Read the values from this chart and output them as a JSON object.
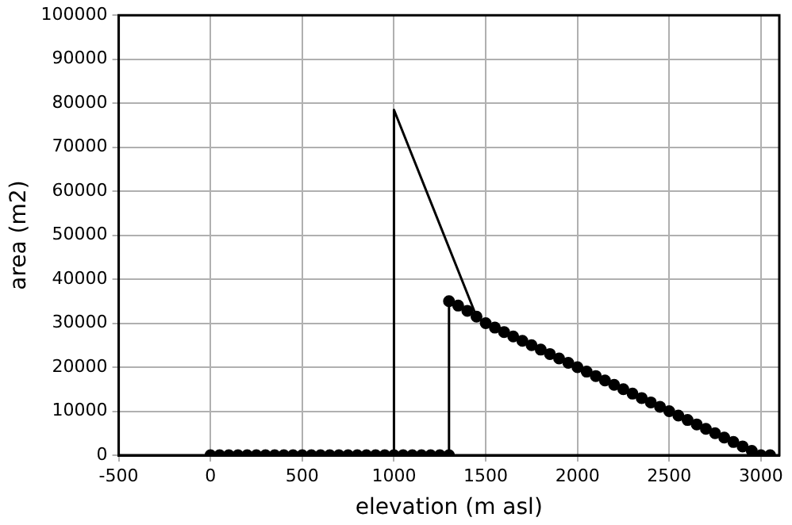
{
  "chart_data": {
    "type": "line",
    "xlabel": "elevation (m asl)",
    "ylabel": "area (m2)",
    "xlim": [
      -500,
      3100
    ],
    "ylim": [
      0,
      100000
    ],
    "xticks": [
      -500,
      0,
      500,
      1000,
      1500,
      2000,
      2500,
      3000
    ],
    "yticks": [
      0,
      10000,
      20000,
      30000,
      40000,
      50000,
      60000,
      70000,
      80000,
      90000,
      100000
    ],
    "grid": true,
    "series": [
      {
        "color": "#000000",
        "marker": "circle",
        "x": [
          0,
          50,
          100,
          150,
          200,
          250,
          300,
          350,
          400,
          450,
          500,
          550,
          600,
          650,
          700,
          750,
          800,
          850,
          900,
          950,
          1000,
          1050,
          1100,
          1150,
          1200,
          1250,
          1300,
          1300,
          1350,
          1400,
          1450,
          1500,
          1550,
          1600,
          1650,
          1700,
          1750,
          1800,
          1850,
          1900,
          1950,
          2000,
          2050,
          2100,
          2150,
          2200,
          2250,
          2300,
          2350,
          2400,
          2450,
          2500,
          2550,
          2600,
          2650,
          2700,
          2750,
          2800,
          2850,
          2900,
          2950,
          3000,
          3050
        ],
        "values": [
          0,
          0,
          0,
          0,
          0,
          0,
          0,
          0,
          0,
          0,
          0,
          0,
          0,
          0,
          0,
          0,
          0,
          0,
          0,
          0,
          0,
          0,
          0,
          0,
          0,
          0,
          0,
          35000,
          34000,
          32800,
          31500,
          30000,
          29000,
          28000,
          27000,
          26000,
          25000,
          24000,
          23000,
          22000,
          21000,
          20000,
          19000,
          18000,
          17000,
          16000,
          15000,
          14000,
          13000,
          12000,
          11000,
          10000,
          9000,
          8000,
          7000,
          6000,
          5000,
          4000,
          3000,
          2000,
          1000,
          0,
          0
        ]
      },
      {
        "color": "#000000",
        "marker": "none",
        "x": [
          0,
          1000,
          1000,
          1450
        ],
        "values": [
          0,
          0,
          78500,
          31500
        ]
      }
    ]
  }
}
